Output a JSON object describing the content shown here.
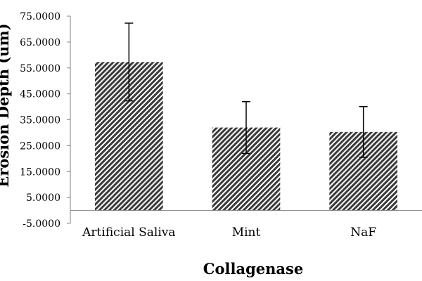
{
  "chart_data": {
    "type": "bar",
    "title": "",
    "xlabel": "Collagenase",
    "ylabel": "Erosion Depth (um)",
    "categories": [
      "Artificial Saliva",
      "Mint",
      "NaF"
    ],
    "values": [
      57.3,
      32.0,
      30.3
    ],
    "error_bars": [
      15.0,
      10.0,
      9.8
    ],
    "ylim": [
      -5,
      75
    ],
    "yticks": [
      75,
      65,
      55,
      45,
      35,
      25,
      15,
      5,
      -5
    ],
    "ytick_labels": [
      "75.0000",
      "65.0000",
      "55.0000",
      "45.0000",
      "35.0000",
      "25.0000",
      "15.0000",
      "5.0000",
      "-5.0000"
    ],
    "grid": false,
    "legend": "none",
    "bar_fill": "diagonal-hatch",
    "colors": {
      "hatch": "#3a3a3a",
      "axis": "#808080",
      "text": "#000000"
    }
  }
}
